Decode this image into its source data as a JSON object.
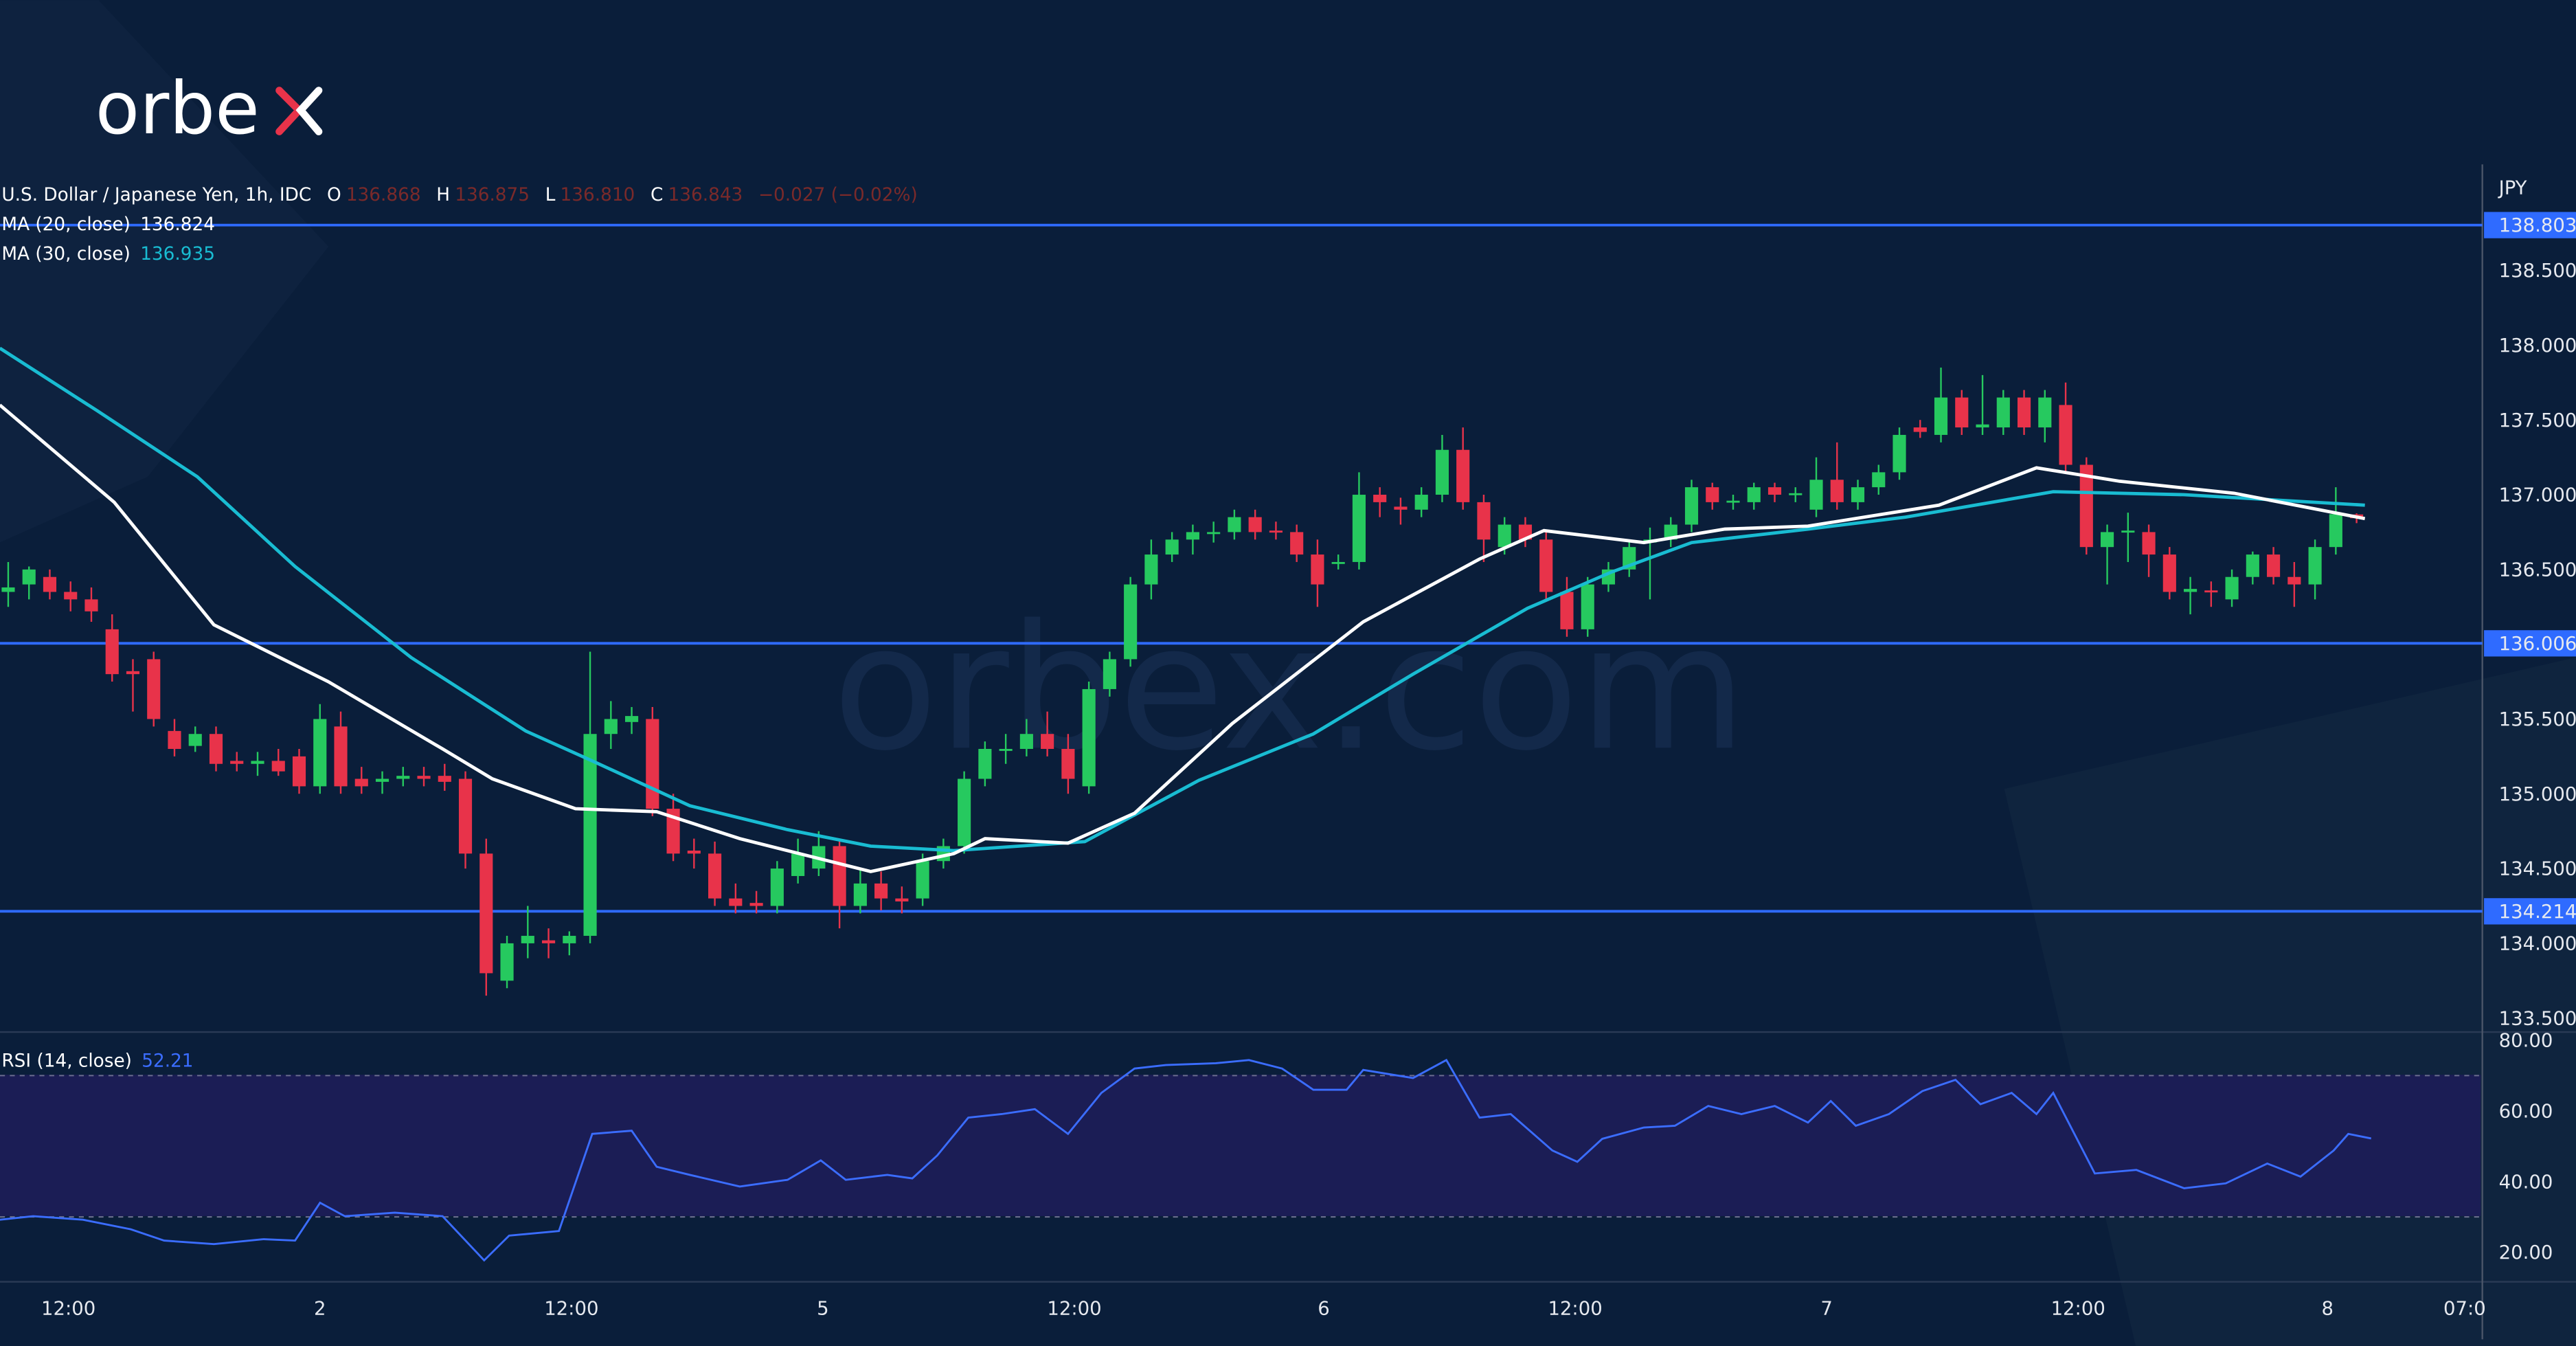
{
  "logo": {
    "text": "orbex"
  },
  "watermark": "orbex.com",
  "legend": {
    "symbol": "U.S. Dollar / Japanese Yen, 1h, IDC",
    "o_label": "O",
    "o": "136.868",
    "h_label": "H",
    "h": "136.875",
    "l_label": "L",
    "l": "136.810",
    "c_label": "C",
    "c": "136.843",
    "change": "−0.027 (−0.02%)",
    "ma20_label": "MA (20, close)",
    "ma20_value": "136.824",
    "ma30_label": "MA (30, close)",
    "ma30_value": "136.935",
    "rsi_label": "RSI (14, close)",
    "rsi_value": "52.21"
  },
  "colors": {
    "bg": "#0a1e3a",
    "up": "#26c95f",
    "down": "#e8334a",
    "ma20": "#ffffff",
    "ma30": "#19bcd2",
    "level": "#2f6bff",
    "rsi": "#3b6dff",
    "rsi_band": "#1b1d55"
  },
  "chart_data": [
    {
      "type": "candlestick",
      "title": "U.S. Dollar / Japanese Yen, 1h, IDC",
      "currency_label": "JPY",
      "ylim": [
        133.4,
        138.97
      ],
      "y_ticks": [
        "138.500",
        "138.000",
        "137.500",
        "137.000",
        "136.500",
        "135.500",
        "135.000",
        "134.500",
        "134.000",
        "133.500"
      ],
      "y_tick_values": [
        138.5,
        138.0,
        137.5,
        137.0,
        136.5,
        135.5,
        135.0,
        134.5,
        134.0,
        133.5
      ],
      "levels": [
        {
          "value": 138.803,
          "label": "138.803"
        },
        {
          "value": 136.006,
          "label": "136.006"
        },
        {
          "value": 134.214,
          "label": "134.214"
        }
      ],
      "x_ticks": [
        {
          "bar": 2.9,
          "label": "12:00"
        },
        {
          "bar": 15.0,
          "label": "2"
        },
        {
          "bar": 27.1,
          "label": "12:00"
        },
        {
          "bar": 39.2,
          "label": "5"
        },
        {
          "bar": 51.3,
          "label": "12:00"
        },
        {
          "bar": 63.3,
          "label": "6"
        },
        {
          "bar": 75.4,
          "label": "12:00"
        },
        {
          "bar": 87.5,
          "label": "7"
        },
        {
          "bar": 99.6,
          "label": "12:00"
        },
        {
          "bar": 111.6,
          "label": "8"
        },
        {
          "bar": 118.2,
          "label": "07:0"
        }
      ],
      "ohlc": [
        [
          136.35,
          136.55,
          136.25,
          136.38
        ],
        [
          136.4,
          136.52,
          136.3,
          136.5
        ],
        [
          136.45,
          136.5,
          136.3,
          136.35
        ],
        [
          136.35,
          136.42,
          136.22,
          136.3
        ],
        [
          136.3,
          136.38,
          136.15,
          136.22
        ],
        [
          136.1,
          136.2,
          135.75,
          135.8
        ],
        [
          135.82,
          135.9,
          135.55,
          135.8
        ],
        [
          135.9,
          135.95,
          135.45,
          135.5
        ],
        [
          135.42,
          135.5,
          135.25,
          135.3
        ],
        [
          135.32,
          135.45,
          135.28,
          135.4
        ],
        [
          135.4,
          135.45,
          135.15,
          135.2
        ],
        [
          135.22,
          135.28,
          135.15,
          135.2
        ],
        [
          135.2,
          135.28,
          135.12,
          135.22
        ],
        [
          135.22,
          135.3,
          135.12,
          135.15
        ],
        [
          135.25,
          135.3,
          135.0,
          135.05
        ],
        [
          135.05,
          135.6,
          135.0,
          135.5
        ],
        [
          135.45,
          135.55,
          135.0,
          135.05
        ],
        [
          135.1,
          135.18,
          135.0,
          135.05
        ],
        [
          135.08,
          135.15,
          135.0,
          135.1
        ],
        [
          135.1,
          135.18,
          135.05,
          135.12
        ],
        [
          135.12,
          135.18,
          135.05,
          135.1
        ],
        [
          135.12,
          135.2,
          135.02,
          135.08
        ],
        [
          135.1,
          135.15,
          134.5,
          134.6
        ],
        [
          134.6,
          134.7,
          133.65,
          133.8
        ],
        [
          133.75,
          134.05,
          133.7,
          134.0
        ],
        [
          134.0,
          134.25,
          133.9,
          134.05
        ],
        [
          134.02,
          134.1,
          133.9,
          134.0
        ],
        [
          134.0,
          134.08,
          133.92,
          134.05
        ],
        [
          134.05,
          135.95,
          134.0,
          135.4
        ],
        [
          135.4,
          135.62,
          135.3,
          135.5
        ],
        [
          135.48,
          135.58,
          135.4,
          135.52
        ],
        [
          135.5,
          135.58,
          134.85,
          134.9
        ],
        [
          134.9,
          135.0,
          134.55,
          134.6
        ],
        [
          134.62,
          134.7,
          134.5,
          134.6
        ],
        [
          134.6,
          134.68,
          134.25,
          134.3
        ],
        [
          134.3,
          134.4,
          134.2,
          134.25
        ],
        [
          134.27,
          134.35,
          134.2,
          134.25
        ],
        [
          134.25,
          134.55,
          134.2,
          134.5
        ],
        [
          134.45,
          134.7,
          134.4,
          134.6
        ],
        [
          134.5,
          134.75,
          134.45,
          134.65
        ],
        [
          134.65,
          134.7,
          134.1,
          134.25
        ],
        [
          134.25,
          134.5,
          134.2,
          134.4
        ],
        [
          134.4,
          134.48,
          134.22,
          134.3
        ],
        [
          134.3,
          134.38,
          134.2,
          134.28
        ],
        [
          134.3,
          134.6,
          134.25,
          134.55
        ],
        [
          134.55,
          134.7,
          134.5,
          134.65
        ],
        [
          134.65,
          135.15,
          134.6,
          135.1
        ],
        [
          135.1,
          135.35,
          135.05,
          135.3
        ],
        [
          135.3,
          135.4,
          135.2,
          135.3
        ],
        [
          135.3,
          135.5,
          135.25,
          135.4
        ],
        [
          135.4,
          135.55,
          135.25,
          135.3
        ],
        [
          135.3,
          135.4,
          135.0,
          135.1
        ],
        [
          135.05,
          135.75,
          135.0,
          135.7
        ],
        [
          135.7,
          135.95,
          135.65,
          135.9
        ],
        [
          135.9,
          136.45,
          135.85,
          136.4
        ],
        [
          136.4,
          136.7,
          136.3,
          136.6
        ],
        [
          136.6,
          136.75,
          136.55,
          136.7
        ],
        [
          136.7,
          136.8,
          136.6,
          136.75
        ],
        [
          136.75,
          136.82,
          136.68,
          136.75
        ],
        [
          136.75,
          136.9,
          136.7,
          136.85
        ],
        [
          136.85,
          136.9,
          136.7,
          136.75
        ],
        [
          136.76,
          136.82,
          136.7,
          136.75
        ],
        [
          136.75,
          136.8,
          136.55,
          136.6
        ],
        [
          136.6,
          136.7,
          136.25,
          136.4
        ],
        [
          136.55,
          136.6,
          136.5,
          136.55
        ],
        [
          136.55,
          137.15,
          136.5,
          137.0
        ],
        [
          137.0,
          137.05,
          136.85,
          136.95
        ],
        [
          136.92,
          136.98,
          136.8,
          136.9
        ],
        [
          136.9,
          137.05,
          136.85,
          137.0
        ],
        [
          137.0,
          137.4,
          136.95,
          137.3
        ],
        [
          137.3,
          137.45,
          136.9,
          136.95
        ],
        [
          136.95,
          137.0,
          136.55,
          136.7
        ],
        [
          136.65,
          136.85,
          136.6,
          136.8
        ],
        [
          136.8,
          136.85,
          136.65,
          136.7
        ],
        [
          136.7,
          136.75,
          136.3,
          136.35
        ],
        [
          136.35,
          136.45,
          136.05,
          136.1
        ],
        [
          136.1,
          136.45,
          136.05,
          136.4
        ],
        [
          136.4,
          136.55,
          136.35,
          136.5
        ],
        [
          136.5,
          136.7,
          136.45,
          136.65
        ],
        [
          136.68,
          136.78,
          136.3,
          136.7
        ],
        [
          136.7,
          136.85,
          136.65,
          136.8
        ],
        [
          136.8,
          137.1,
          136.75,
          137.05
        ],
        [
          137.05,
          137.08,
          136.9,
          136.95
        ],
        [
          136.95,
          137.0,
          136.9,
          136.96
        ],
        [
          136.95,
          137.08,
          136.9,
          137.05
        ],
        [
          137.05,
          137.08,
          136.95,
          137.0
        ],
        [
          137.0,
          137.05,
          136.95,
          137.01
        ],
        [
          136.9,
          137.25,
          136.85,
          137.1
        ],
        [
          137.1,
          137.35,
          136.9,
          136.95
        ],
        [
          136.95,
          137.1,
          136.9,
          137.05
        ],
        [
          137.05,
          137.2,
          137.0,
          137.15
        ],
        [
          137.15,
          137.45,
          137.1,
          137.4
        ],
        [
          137.45,
          137.5,
          137.38,
          137.42
        ],
        [
          137.4,
          137.85,
          137.35,
          137.65
        ],
        [
          137.65,
          137.7,
          137.4,
          137.45
        ],
        [
          137.45,
          137.8,
          137.4,
          137.47
        ],
        [
          137.45,
          137.7,
          137.4,
          137.65
        ],
        [
          137.65,
          137.7,
          137.4,
          137.45
        ],
        [
          137.45,
          137.7,
          137.35,
          137.65
        ],
        [
          137.6,
          137.75,
          137.15,
          137.2
        ],
        [
          137.2,
          137.25,
          136.6,
          136.65
        ],
        [
          136.65,
          136.8,
          136.4,
          136.75
        ],
        [
          136.75,
          136.88,
          136.55,
          136.76
        ],
        [
          136.75,
          136.8,
          136.45,
          136.6
        ],
        [
          136.6,
          136.65,
          136.3,
          136.35
        ],
        [
          136.35,
          136.45,
          136.2,
          136.37
        ],
        [
          136.36,
          136.42,
          136.25,
          136.35
        ],
        [
          136.3,
          136.5,
          136.25,
          136.45
        ],
        [
          136.45,
          136.62,
          136.4,
          136.6
        ],
        [
          136.6,
          136.65,
          136.4,
          136.45
        ],
        [
          136.45,
          136.55,
          136.25,
          136.4
        ],
        [
          136.4,
          136.7,
          136.3,
          136.65
        ],
        [
          136.65,
          137.05,
          136.6,
          136.87
        ],
        [
          136.868,
          136.875,
          136.81,
          136.843
        ]
      ],
      "ma20": [
        [
          -0.4,
          137.6
        ],
        [
          5.1,
          136.95
        ],
        [
          9.9,
          136.13
        ],
        [
          15.4,
          135.75
        ],
        [
          20.9,
          135.3
        ],
        [
          23.3,
          135.1
        ],
        [
          27.3,
          134.9
        ],
        [
          31.2,
          134.88
        ],
        [
          35.2,
          134.7
        ],
        [
          41.5,
          134.48
        ],
        [
          45.5,
          134.6
        ],
        [
          47,
          134.7
        ],
        [
          51,
          134.67
        ],
        [
          54.2,
          134.87
        ],
        [
          58.9,
          135.47
        ],
        [
          65.2,
          136.15
        ],
        [
          70.8,
          136.57
        ],
        [
          73.9,
          136.76
        ],
        [
          78.7,
          136.68
        ],
        [
          82.6,
          136.77
        ],
        [
          86.6,
          136.79
        ],
        [
          92.9,
          136.93
        ],
        [
          97.6,
          137.18
        ],
        [
          101.6,
          137.09
        ],
        [
          107.1,
          137.01
        ],
        [
          113.4,
          136.84
        ]
      ],
      "ma30": [
        [
          -0.4,
          137.98
        ],
        [
          4.3,
          137.56
        ],
        [
          9.1,
          137.12
        ],
        [
          13.8,
          136.52
        ],
        [
          19.4,
          135.91
        ],
        [
          24.9,
          135.42
        ],
        [
          28.1,
          135.22
        ],
        [
          32.8,
          134.92
        ],
        [
          37.5,
          134.76
        ],
        [
          41.5,
          134.65
        ],
        [
          45.5,
          134.62
        ],
        [
          51.8,
          134.68
        ],
        [
          57.3,
          135.09
        ],
        [
          62.8,
          135.4
        ],
        [
          67.6,
          135.8
        ],
        [
          73.1,
          136.24
        ],
        [
          77.1,
          136.48
        ],
        [
          81,
          136.68
        ],
        [
          86.6,
          136.77
        ],
        [
          91.3,
          136.85
        ],
        [
          98.4,
          137.02
        ],
        [
          104.7,
          137.0
        ],
        [
          113.4,
          136.93
        ]
      ]
    },
    {
      "type": "line",
      "title": "RSI (14, close)",
      "ylim": [
        15,
        82
      ],
      "band": [
        30,
        70
      ],
      "y_ticks": [
        "80.00",
        "60.00",
        "40.00",
        "20.00"
      ],
      "y_tick_values": [
        80,
        60,
        40,
        20
      ],
      "points": [
        [
          -0.4,
          29.2
        ],
        [
          1.2,
          30.2
        ],
        [
          3.6,
          29.2
        ],
        [
          5.9,
          26.5
        ],
        [
          7.5,
          23.3
        ],
        [
          9.9,
          22.3
        ],
        [
          12.3,
          23.7
        ],
        [
          13.8,
          23.3
        ],
        [
          15.0,
          34
        ],
        [
          16.2,
          30.2
        ],
        [
          18.6,
          31.2
        ],
        [
          20.9,
          30.2
        ],
        [
          22.9,
          17.7
        ],
        [
          24.1,
          24.7
        ],
        [
          26.5,
          26
        ],
        [
          28.1,
          53.5
        ],
        [
          30.0,
          54.4
        ],
        [
          31.2,
          44.2
        ],
        [
          32.8,
          41.9
        ],
        [
          35.2,
          38.6
        ],
        [
          37.5,
          40.5
        ],
        [
          39.1,
          46
        ],
        [
          40.3,
          40.5
        ],
        [
          42.3,
          41.9
        ],
        [
          43.5,
          40.9
        ],
        [
          44.7,
          47.4
        ],
        [
          46.2,
          58.1
        ],
        [
          47.8,
          59.1
        ],
        [
          49.4,
          60.5
        ],
        [
          51,
          53.5
        ],
        [
          52.6,
          65.1
        ],
        [
          54.2,
          72
        ],
        [
          55.7,
          73
        ],
        [
          58.1,
          73.5
        ],
        [
          59.7,
          74.4
        ],
        [
          61.3,
          72
        ],
        [
          62.8,
          66
        ],
        [
          64.4,
          66
        ],
        [
          65.2,
          71.6
        ],
        [
          67.6,
          69.3
        ],
        [
          69.2,
          74.4
        ],
        [
          70.8,
          58.1
        ],
        [
          72.3,
          59.1
        ],
        [
          74.3,
          48.8
        ],
        [
          75.5,
          45.6
        ],
        [
          76.7,
          52.1
        ],
        [
          78.7,
          55.3
        ],
        [
          80.2,
          55.8
        ],
        [
          81.8,
          61.4
        ],
        [
          83.4,
          59.1
        ],
        [
          85,
          61.4
        ],
        [
          86.6,
          56.7
        ],
        [
          87.7,
          62.8
        ],
        [
          88.9,
          55.8
        ],
        [
          90.5,
          59.1
        ],
        [
          92.1,
          65.6
        ],
        [
          93.7,
          68.8
        ],
        [
          94.9,
          61.9
        ],
        [
          96.4,
          65.1
        ],
        [
          97.6,
          59.1
        ],
        [
          98.4,
          65.1
        ],
        [
          100.4,
          42.3
        ],
        [
          102.4,
          43.3
        ],
        [
          104.7,
          38.1
        ],
        [
          106.7,
          39.5
        ],
        [
          108.7,
          45.1
        ],
        [
          110.3,
          41.4
        ],
        [
          111.9,
          48.8
        ],
        [
          112.6,
          53.5
        ],
        [
          113.7,
          52.2
        ]
      ]
    }
  ]
}
